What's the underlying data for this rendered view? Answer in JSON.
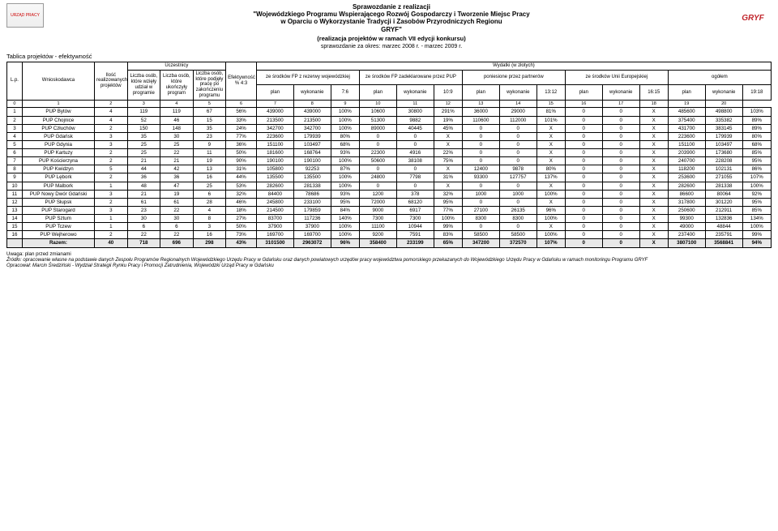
{
  "header": {
    "title1": "Sprawozdanie z realizacji",
    "title2": "\"Wojewódzkiego Programu Wspierającego Rozwój Gospodarczy i Tworzenie Miejsc Pracy",
    "title3": "w Oparciu o Wykorzystanie Tradycji i Zasobów Przyrodniczych Regionu",
    "title4": "GRYF\"",
    "subtitle": "(realizacja projektów w ramach VII edycji konkursu)",
    "period": "sprawozdanie za okres: marzec 2008 r. - marzec 2009 r.",
    "logo_left": "URZĄD PRACY",
    "logo_right": "GRYF"
  },
  "section_title": "Tablica projektów - efektywność",
  "group_headers": {
    "uczestnicy": "Uczestnicy",
    "wydatki": "Wydatki (w złotych)"
  },
  "col_headers": {
    "lp": "L.p.",
    "wnioskodawca": "Wnioskodawca",
    "ilosc": "Ilość realizowanych projektów",
    "wziely": "Liczba osób, które wzięły udział w programie",
    "ukonczyly": "Liczba osób, które ukończyły program",
    "podjely": "Liczba osób, które podjęły pracę po zakończeniu programu",
    "efekt": "Efektywność % 4:3",
    "fp_rez": "ze środków FP z rezerwy wojewódzkiej",
    "fp_pup": "ze środków FP zadeklarowane przez PUP",
    "partner": "poniesione przez partnerów",
    "ue": "ze środków Unii Europejskiej",
    "ogolem": "ogółem",
    "plan": "plan",
    "wykonanie": "wykonanie",
    "r76": "7:6",
    "r109": "10:9",
    "r1312": "13:12",
    "r1615": "16:15",
    "r1918": "19:18"
  },
  "idx": [
    "0",
    "1",
    "2",
    "3",
    "4",
    "5",
    "6",
    "7",
    "8",
    "9",
    "10",
    "11",
    "12",
    "13",
    "14",
    "15",
    "16",
    "17",
    "18",
    "19",
    "20"
  ],
  "rows": [
    [
      "1",
      "PUP Bytów",
      "4",
      "119",
      "119",
      "67",
      "56%",
      "439000",
      "439000",
      "100%",
      "10600",
      "30800",
      "291%",
      "36000",
      "29000",
      "81%",
      "0",
      "0",
      "X",
      "485600",
      "498800",
      "103%"
    ],
    [
      "2",
      "PUP Chojnice",
      "4",
      "52",
      "46",
      "15",
      "33%",
      "213500",
      "213500",
      "100%",
      "51300",
      "9882",
      "19%",
      "110600",
      "112000",
      "101%",
      "0",
      "0",
      "X",
      "375400",
      "335382",
      "89%"
    ],
    [
      "3",
      "PUP Człuchów",
      "2",
      "150",
      "148",
      "35",
      "24%",
      "342700",
      "342700",
      "100%",
      "89000",
      "40445",
      "45%",
      "0",
      "0",
      "X",
      "0",
      "0",
      "X",
      "431700",
      "383145",
      "89%"
    ],
    [
      "4",
      "PUP Gdańsk",
      "3",
      "35",
      "30",
      "23",
      "77%",
      "223600",
      "179939",
      "80%",
      "0",
      "0",
      "X",
      "0",
      "0",
      "X",
      "0",
      "0",
      "X",
      "223600",
      "179939",
      "80%"
    ],
    [
      "5",
      "PUP Gdynia",
      "3",
      "25",
      "25",
      "9",
      "36%",
      "151100",
      "103497",
      "68%",
      "0",
      "0",
      "X",
      "0",
      "0",
      "X",
      "0",
      "0",
      "X",
      "151100",
      "103497",
      "68%"
    ],
    [
      "6",
      "PUP Kartuzy",
      "2",
      "25",
      "22",
      "11",
      "50%",
      "181600",
      "168764",
      "93%",
      "22300",
      "4916",
      "22%",
      "0",
      "0",
      "X",
      "0",
      "0",
      "X",
      "203900",
      "173680",
      "85%"
    ],
    [
      "7",
      "PUP Kościerzyna",
      "2",
      "21",
      "21",
      "19",
      "90%",
      "190100",
      "190100",
      "100%",
      "50600",
      "38108",
      "75%",
      "0",
      "0",
      "X",
      "0",
      "0",
      "X",
      "240700",
      "228208",
      "95%"
    ],
    [
      "8",
      "PUP Kwidzyn",
      "5",
      "44",
      "42",
      "13",
      "31%",
      "105800",
      "92253",
      "87%",
      "0",
      "0",
      "X",
      "12400",
      "9878",
      "80%",
      "0",
      "0",
      "X",
      "118200",
      "102131",
      "86%"
    ],
    [
      "9",
      "PUP Lębork",
      "2",
      "36",
      "36",
      "16",
      "44%",
      "135500",
      "135500",
      "100%",
      "24800",
      "7798",
      "31%",
      "93300",
      "127757",
      "137%",
      "0",
      "0",
      "X",
      "253600",
      "271055",
      "107%"
    ],
    [
      "10",
      "PUP Malbork",
      "1",
      "48",
      "47",
      "25",
      "53%",
      "282600",
      "281338",
      "100%",
      "0",
      "0",
      "X",
      "0",
      "0",
      "X",
      "0",
      "0",
      "X",
      "282600",
      "281338",
      "100%"
    ],
    [
      "11",
      "PUP Nowy Dwór Gdański",
      "3",
      "21",
      "19",
      "6",
      "32%",
      "84400",
      "78686",
      "93%",
      "1200",
      "378",
      "32%",
      "1000",
      "1000",
      "100%",
      "0",
      "0",
      "X",
      "86600",
      "80064",
      "92%"
    ],
    [
      "12",
      "PUP Słupsk",
      "2",
      "61",
      "61",
      "28",
      "46%",
      "245800",
      "233100",
      "95%",
      "72000",
      "68120",
      "95%",
      "0",
      "0",
      "X",
      "0",
      "0",
      "X",
      "317800",
      "301220",
      "95%"
    ],
    [
      "13",
      "PUP Starogard",
      "3",
      "23",
      "22",
      "4",
      "18%",
      "214500",
      "179859",
      "84%",
      "9000",
      "6917",
      "77%",
      "27100",
      "26135",
      "96%",
      "0",
      "0",
      "X",
      "250600",
      "212911",
      "85%"
    ],
    [
      "14",
      "PUP Sztum",
      "1",
      "30",
      "30",
      "8",
      "27%",
      "83700",
      "117236",
      "140%",
      "7300",
      "7300",
      "100%",
      "8300",
      "8300",
      "100%",
      "0",
      "0",
      "X",
      "99300",
      "132836",
      "134%"
    ],
    [
      "15",
      "PUP Tczew",
      "1",
      "6",
      "6",
      "3",
      "50%",
      "37900",
      "37900",
      "100%",
      "11100",
      "10944",
      "99%",
      "0",
      "0",
      "X",
      "0",
      "0",
      "X",
      "49000",
      "48844",
      "100%"
    ],
    [
      "16",
      "PUP Wejherowo",
      "2",
      "22",
      "22",
      "16",
      "73%",
      "169700",
      "169700",
      "100%",
      "9200",
      "7591",
      "83%",
      "58500",
      "58500",
      "100%",
      "0",
      "0",
      "X",
      "237400",
      "235791",
      "99%"
    ]
  ],
  "total_row": [
    "",
    "Razem:",
    "40",
    "718",
    "696",
    "298",
    "43%",
    "3101500",
    "2963072",
    "96%",
    "358400",
    "233199",
    "65%",
    "347200",
    "372570",
    "107%",
    "0",
    "0",
    "X",
    "3807100",
    "3568841",
    "94%"
  ],
  "footnotes": {
    "uwaga": "Uwaga: plan przed zmianami",
    "zrodlo": "Źródło: opracowanie własne na podstawie danych Zespołu Programów Regionalnych Wojewódzkiego Urzędu Pracy w Gdańsku oraz danych powiatowych urzędów pracy województwa pomorskiego przekazanych do Wojewódzkiego Urzędu Pracy w Gdańsku w ramach monitoringu Programu GRYF",
    "opracowal": "Opracował: Marcin Średziński - Wydział Strategii Rynku Pracy i Promocji Zatrudnienia, Wojewódzki Urząd Pracy w Gdańsku"
  }
}
